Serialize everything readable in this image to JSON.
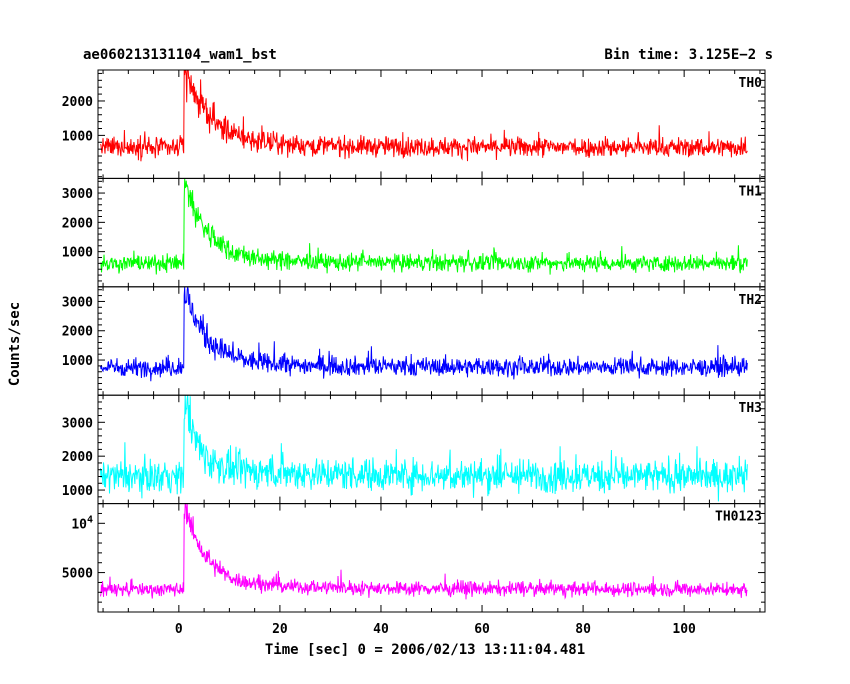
{
  "chart_data": {
    "type": "line",
    "title_left": "ae060213131104_wam1_bst",
    "title_right": "Bin time: 3.125E−2 s",
    "xlabel": "Time [sec] 0 = 2006/02/13 13:11:04.481",
    "ylabel": "Counts/sec",
    "xlim": [
      -16,
      116
    ],
    "x_ticks": [
      0,
      20,
      40,
      60,
      80,
      100
    ],
    "x_tick_labels": [
      "0",
      "20",
      "40",
      "60",
      "80",
      "100"
    ],
    "x_data_range": [
      -15.5,
      112.5
    ],
    "burst_start": 1.0,
    "series": [
      {
        "name": "TH0",
        "color": "#ff0000",
        "ylim": [
          -250,
          2900
        ],
        "y_ticks": [
          1000,
          2000
        ],
        "y_tick_labels": [
          "1000",
          "2000"
        ],
        "baseline": 650,
        "noise": 200,
        "peak": 2900,
        "decay_tau": 5
      },
      {
        "name": "TH1",
        "color": "#00ff00",
        "ylim": [
          -200,
          3500
        ],
        "y_ticks": [
          1000,
          2000,
          3000
        ],
        "y_tick_labels": [
          "1000",
          "2000",
          "3000"
        ],
        "baseline": 600,
        "noise": 200,
        "peak": 3400,
        "decay_tau": 4.5
      },
      {
        "name": "TH2",
        "color": "#0000ff",
        "ylim": [
          -200,
          3500
        ],
        "y_ticks": [
          1000,
          2000,
          3000
        ],
        "y_tick_labels": [
          "1000",
          "2000",
          "3000"
        ],
        "baseline": 750,
        "noise": 220,
        "peak": 3300,
        "decay_tau": 4.5
      },
      {
        "name": "TH3",
        "color": "#00ffff",
        "ylim": [
          600,
          3800
        ],
        "y_ticks": [
          1000,
          2000,
          3000
        ],
        "y_tick_labels": [
          "1000",
          "2000",
          "3000"
        ],
        "baseline": 1400,
        "noise": 330,
        "peak": 3600,
        "decay_tau": 2.5
      },
      {
        "name": "TH0123",
        "color": "#ff00ff",
        "ylim": [
          1000,
          12000
        ],
        "y_ticks": [
          5000,
          10000
        ],
        "y_tick_labels": [
          "5000",
          "10^4"
        ],
        "baseline": 3300,
        "noise": 500,
        "peak": 11600,
        "decay_tau": 4
      }
    ]
  }
}
